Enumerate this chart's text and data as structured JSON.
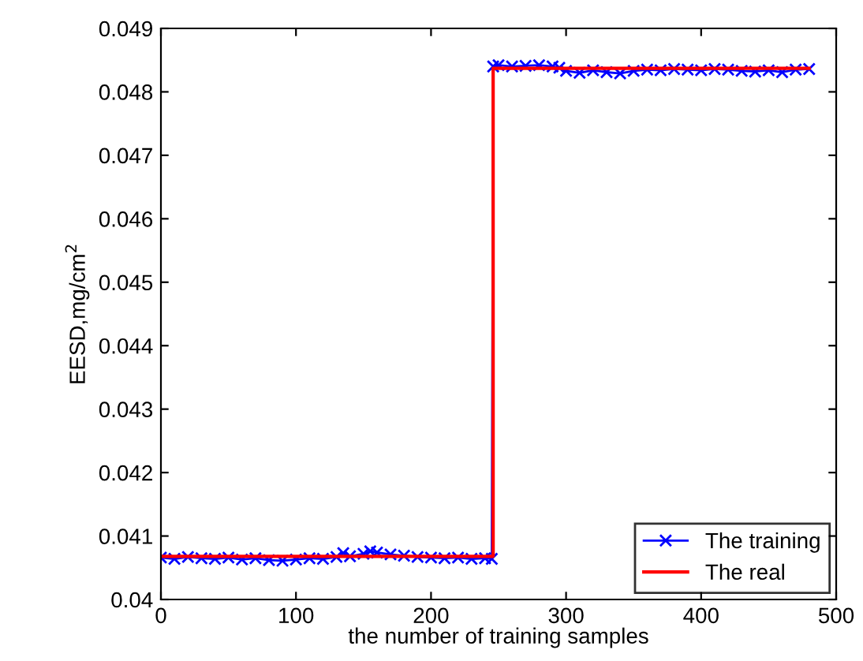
{
  "chart_data": {
    "type": "line",
    "xlabel": "the number of training samples",
    "ylabel": "EESD,mg/cm$^{2}$",
    "xlim": [
      0,
      500
    ],
    "xticks": [
      0,
      100,
      200,
      300,
      400,
      500
    ],
    "ylim": [
      0.04,
      0.049
    ],
    "yticks": [
      {
        "value": 0.04,
        "label": "0.04"
      },
      0.041,
      0.042,
      0.043,
      0.044,
      0.045,
      0.046,
      0.047,
      0.048,
      0.049
    ],
    "grid": false,
    "legend": "bottom right",
    "series": [
      {
        "name": "The training",
        "color": "#0000ff",
        "marker": "cross",
        "line_style": "solid",
        "x": [
          0,
          10,
          20,
          30,
          40,
          50,
          60,
          70,
          80,
          90,
          100,
          110,
          120,
          130,
          135,
          140,
          150,
          155,
          160,
          170,
          180,
          190,
          200,
          210,
          220,
          230,
          240,
          245,
          246,
          250,
          260,
          270,
          280,
          290,
          295,
          300,
          310,
          320,
          330,
          340,
          350,
          360,
          370,
          380,
          390,
          400,
          410,
          420,
          430,
          440,
          450,
          460,
          470,
          480
        ],
        "values": [
          0.04066,
          0.04064,
          0.04067,
          0.04065,
          0.04064,
          0.04066,
          0.04063,
          0.04065,
          0.04062,
          0.04061,
          0.04063,
          0.04065,
          0.04064,
          0.04067,
          0.04073,
          0.04068,
          0.04072,
          0.04076,
          0.04074,
          0.04071,
          0.04069,
          0.04067,
          0.04066,
          0.04065,
          0.04066,
          0.04064,
          0.04065,
          0.04064,
          0.0484,
          0.04842,
          0.0484,
          0.04841,
          0.04842,
          0.0484,
          0.04838,
          0.04833,
          0.0483,
          0.04834,
          0.04831,
          0.04829,
          0.04833,
          0.04835,
          0.04834,
          0.04836,
          0.04835,
          0.04834,
          0.04836,
          0.04835,
          0.04833,
          0.04832,
          0.04834,
          0.04831,
          0.04835,
          0.04836
        ]
      },
      {
        "name": "The real",
        "color": "#ff0000",
        "marker": "none",
        "line_style": "solid",
        "x": [
          0,
          246,
          246,
          480
        ],
        "values": [
          0.04068,
          0.04068,
          0.04837,
          0.04837
        ]
      }
    ]
  }
}
